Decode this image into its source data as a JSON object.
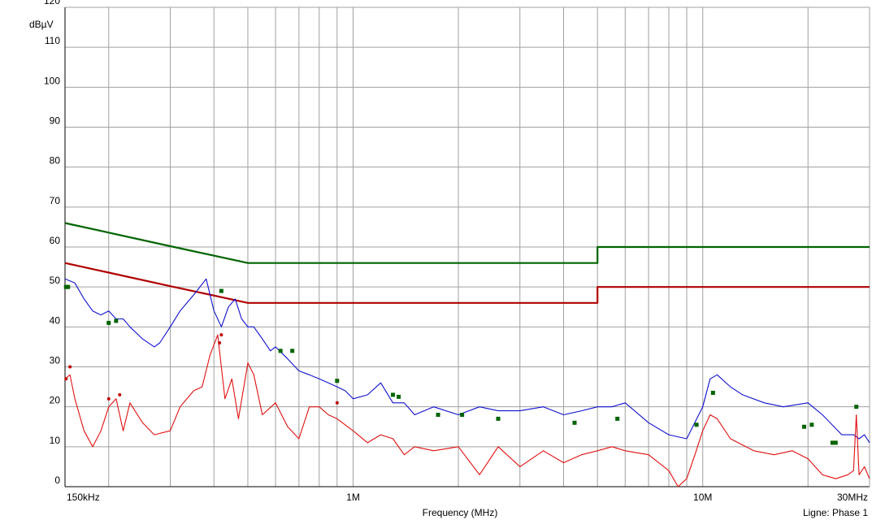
{
  "chart_data": {
    "type": "line",
    "title": "",
    "xlabel": "Frequency (MHz)",
    "ylabel": "dBµV",
    "footer_right": "Ligne: Phase 1",
    "x_scale": "log",
    "xlim": [
      0.15,
      30
    ],
    "ylim": [
      0,
      120
    ],
    "grid": true,
    "y_ticks": [
      0,
      10,
      20,
      30,
      40,
      50,
      60,
      70,
      80,
      90,
      100,
      110,
      120
    ],
    "y_tick_labels": [
      "0",
      "10",
      "20",
      "30",
      "40",
      "50",
      "60",
      "70",
      "80",
      "90",
      "100",
      "110",
      "120"
    ],
    "x_tick_labels": [
      {
        "value": 0.15,
        "label": "150kHz"
      },
      {
        "value": 1,
        "label": "1M"
      },
      {
        "value": 10,
        "label": "10M"
      },
      {
        "value": 30,
        "label": "30MHz"
      }
    ],
    "x_grid_values": [
      0.2,
      0.3,
      0.4,
      0.5,
      0.6,
      0.7,
      0.8,
      0.9,
      1,
      2,
      3,
      4,
      5,
      6,
      7,
      8,
      9,
      10,
      20,
      30
    ],
    "colors": {
      "grid": "#a0a0a0",
      "limit_qp": "#006400",
      "limit_avg": "#b00000",
      "trace_peak": "#1010d0",
      "trace_avg": "#e01010",
      "marker_qp": "#006400",
      "marker_avg": "#c00000"
    },
    "series": [
      {
        "kind": "limit",
        "color_key": "limit_qp",
        "x": [
          0.15,
          0.2,
          0.3,
          0.5,
          0.5,
          5,
          5,
          30
        ],
        "y": [
          66,
          63.6,
          60.2,
          56,
          56,
          56,
          60,
          60
        ]
      },
      {
        "kind": "limit",
        "color_key": "limit_avg",
        "x": [
          0.15,
          0.2,
          0.3,
          0.5,
          0.5,
          5,
          5,
          30
        ],
        "y": [
          56,
          53.6,
          50.2,
          46,
          46,
          46,
          50,
          50
        ]
      },
      {
        "kind": "trace",
        "color_key": "trace_peak",
        "x": [
          0.15,
          0.16,
          0.17,
          0.18,
          0.19,
          0.2,
          0.21,
          0.22,
          0.23,
          0.25,
          0.27,
          0.28,
          0.3,
          0.32,
          0.35,
          0.38,
          0.4,
          0.42,
          0.44,
          0.46,
          0.48,
          0.5,
          0.52,
          0.55,
          0.58,
          0.6,
          0.65,
          0.7,
          0.75,
          0.8,
          0.85,
          0.9,
          0.95,
          1.0,
          1.1,
          1.2,
          1.3,
          1.4,
          1.5,
          1.7,
          2.0,
          2.3,
          2.6,
          3.0,
          3.5,
          4.0,
          4.5,
          5.0,
          5.5,
          6.0,
          7.0,
          8.0,
          9.0,
          10,
          10.5,
          11,
          12,
          13,
          15,
          17,
          20,
          22,
          25,
          27,
          28,
          29,
          30
        ],
        "y": [
          52,
          51,
          47,
          44,
          43,
          44,
          42,
          42,
          40,
          37,
          35,
          36,
          40,
          44,
          48,
          52,
          44,
          40,
          45,
          47,
          42,
          40,
          40,
          37,
          34,
          35,
          32,
          29,
          28,
          27,
          26,
          25,
          24,
          22,
          23,
          26,
          21,
          21,
          18,
          20,
          18,
          20,
          19,
          19,
          20,
          18,
          19,
          20,
          20,
          21,
          16,
          13,
          12,
          20,
          27,
          28,
          25,
          23,
          21,
          20,
          21,
          18,
          13,
          13,
          12,
          13,
          11
        ]
      },
      {
        "kind": "trace",
        "color_key": "trace_avg",
        "x": [
          0.15,
          0.155,
          0.16,
          0.17,
          0.18,
          0.19,
          0.2,
          0.21,
          0.22,
          0.23,
          0.25,
          0.27,
          0.3,
          0.32,
          0.35,
          0.37,
          0.39,
          0.41,
          0.43,
          0.45,
          0.47,
          0.5,
          0.52,
          0.55,
          0.6,
          0.65,
          0.7,
          0.75,
          0.8,
          0.85,
          0.9,
          1.0,
          1.1,
          1.2,
          1.3,
          1.4,
          1.5,
          1.7,
          2.0,
          2.3,
          2.6,
          3.0,
          3.5,
          4.0,
          4.5,
          5.0,
          5.5,
          6.0,
          7.0,
          8.0,
          8.5,
          9.0,
          9.5,
          10,
          10.5,
          11,
          12,
          14,
          16,
          18,
          20,
          22,
          24,
          26,
          27,
          27.5,
          28,
          29,
          30
        ],
        "y": [
          27,
          28,
          22,
          14,
          10,
          14,
          20,
          22,
          14,
          21,
          16,
          13,
          14,
          20,
          24,
          25,
          33,
          38,
          22,
          27,
          17,
          31,
          28,
          18,
          21,
          15,
          12,
          20,
          20,
          18,
          17,
          14,
          11,
          13,
          12,
          8,
          10,
          9,
          10,
          3,
          10,
          5,
          9,
          6,
          8,
          9,
          10,
          9,
          8,
          4,
          0,
          2,
          8,
          14,
          18,
          17,
          12,
          9,
          8,
          9,
          7,
          3,
          2,
          3,
          4,
          18,
          3,
          5,
          2
        ]
      }
    ],
    "markers_qp": [
      {
        "x": 0.151,
        "y": 50
      },
      {
        "x": 0.153,
        "y": 50
      },
      {
        "x": 0.2,
        "y": 41
      },
      {
        "x": 0.21,
        "y": 41.5
      },
      {
        "x": 0.42,
        "y": 49
      },
      {
        "x": 0.62,
        "y": 34
      },
      {
        "x": 0.67,
        "y": 34
      },
      {
        "x": 0.9,
        "y": 26.5
      },
      {
        "x": 1.3,
        "y": 23
      },
      {
        "x": 1.35,
        "y": 22.5
      },
      {
        "x": 1.75,
        "y": 18
      },
      {
        "x": 2.05,
        "y": 18
      },
      {
        "x": 2.6,
        "y": 17
      },
      {
        "x": 4.3,
        "y": 16
      },
      {
        "x": 5.7,
        "y": 17
      },
      {
        "x": 9.6,
        "y": 15.5
      },
      {
        "x": 10.7,
        "y": 23.5
      },
      {
        "x": 19.5,
        "y": 15
      },
      {
        "x": 20.5,
        "y": 15.5
      },
      {
        "x": 23.5,
        "y": 11
      },
      {
        "x": 24,
        "y": 11
      },
      {
        "x": 27.5,
        "y": 20
      }
    ],
    "markers_avg": [
      {
        "x": 0.151,
        "y": 27
      },
      {
        "x": 0.155,
        "y": 30
      },
      {
        "x": 0.2,
        "y": 22
      },
      {
        "x": 0.215,
        "y": 23
      },
      {
        "x": 0.415,
        "y": 36
      },
      {
        "x": 0.42,
        "y": 38
      },
      {
        "x": 0.9,
        "y": 21
      }
    ]
  }
}
